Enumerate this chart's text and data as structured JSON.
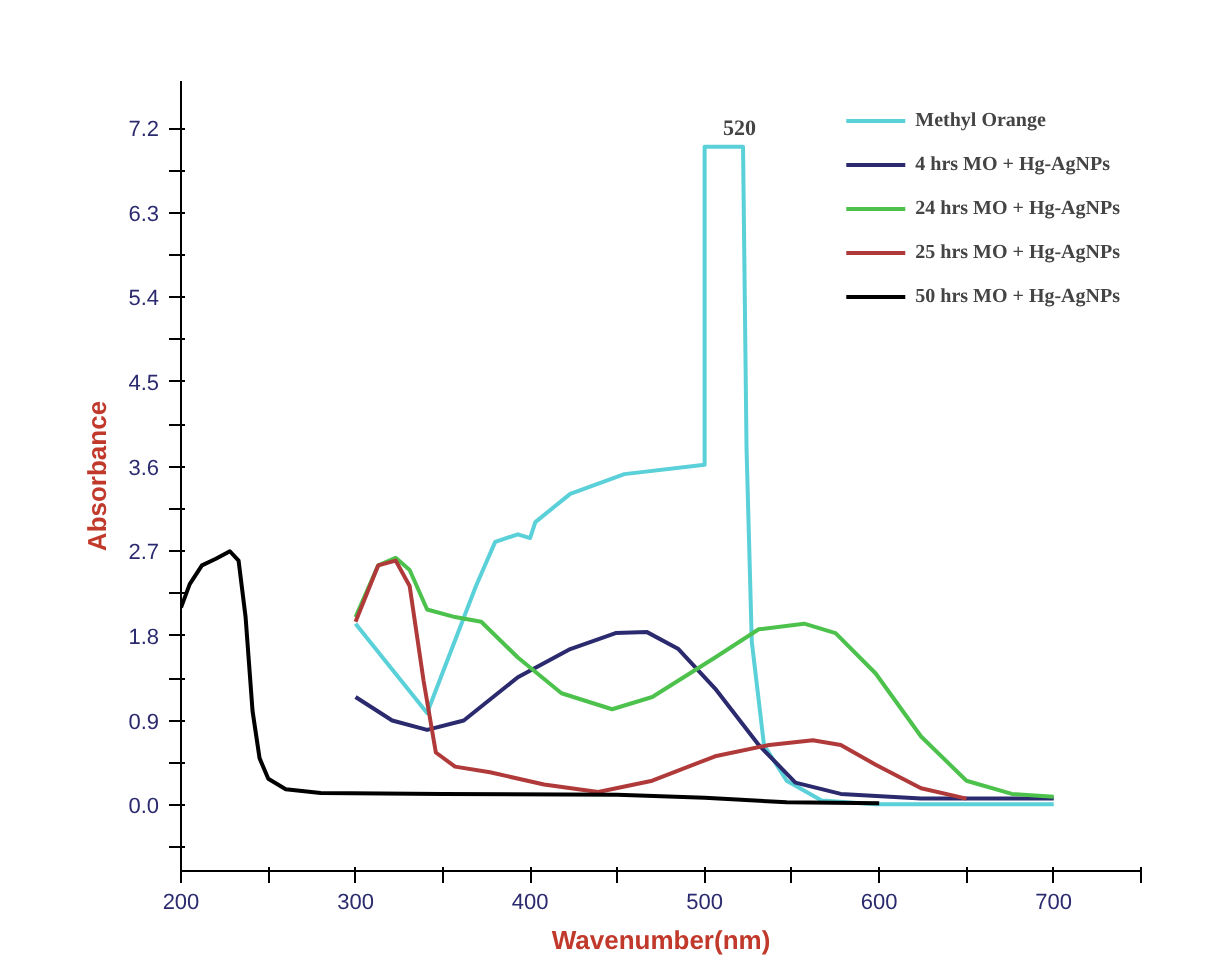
{
  "chart_data": {
    "type": "line",
    "xlabel": "Wavenumber(nm)",
    "ylabel": "Absorbance",
    "xlim": [
      200,
      750
    ],
    "ylim": [
      -0.7,
      7.7
    ],
    "xticks": [
      200,
      {
        "value": 250,
        "label": null
      },
      300,
      {
        "value": 350,
        "label": null
      },
      400,
      {
        "value": 450,
        "label": null
      },
      500,
      {
        "value": 550,
        "label": null
      },
      600,
      {
        "value": 650,
        "label": null
      },
      700,
      {
        "value": 750,
        "label": null
      }
    ],
    "yticks": [
      {
        "value": -0.45,
        "label": null
      },
      {
        "value": 0,
        "label": "0.0"
      },
      {
        "value": 0.45,
        "label": null
      },
      {
        "value": 0.9,
        "label": "0.9"
      },
      {
        "value": 1.35,
        "label": null
      },
      {
        "value": 1.8,
        "label": "1.8"
      },
      {
        "value": 2.25,
        "label": null
      },
      {
        "value": 2.7,
        "label": "2.7"
      },
      {
        "value": 3.15,
        "label": null
      },
      {
        "value": 3.6,
        "label": "3.6"
      },
      {
        "value": 4.05,
        "label": null
      },
      {
        "value": 4.5,
        "label": "4.5"
      },
      {
        "value": 4.95,
        "label": null
      },
      {
        "value": 5.4,
        "label": "5.4"
      },
      {
        "value": 5.85,
        "label": null
      },
      {
        "value": 6.3,
        "label": "6.3"
      },
      {
        "value": 6.75,
        "label": null
      },
      {
        "value": 7.2,
        "label": "7.2"
      }
    ],
    "grid": false,
    "legend": "top right",
    "marker": "none",
    "line_style": "solid",
    "annotations": [
      {
        "text": "520",
        "x": 520,
        "y": 7.0
      }
    ],
    "series": [
      {
        "name": "Methyl Orange",
        "color": "#5ad0d8",
        "x": [
          300,
          341,
          369,
          380,
          393,
          400,
          403,
          423,
          454,
          500,
          500,
          510,
          522,
          524,
          527,
          534,
          547,
          567,
          598,
          700
        ],
        "values": [
          1.93,
          0.98,
          2.33,
          2.8,
          2.88,
          2.84,
          3.01,
          3.31,
          3.52,
          3.62,
          7.0,
          7.0,
          7.0,
          3.8,
          1.74,
          0.64,
          0.26,
          0.05,
          0.01,
          0.01
        ]
      },
      {
        "name": "4 hrs MO + Hg-AgNPs",
        "color": "#2b2a6e",
        "x": [
          300,
          321,
          341,
          362,
          393,
          423,
          449,
          467,
          485,
          506,
          531,
          552,
          578,
          624,
          700
        ],
        "values": [
          1.15,
          0.9,
          0.8,
          0.9,
          1.36,
          1.66,
          1.83,
          1.84,
          1.66,
          1.24,
          0.64,
          0.24,
          0.12,
          0.07,
          0.07
        ]
      },
      {
        "name": "24 hrs MO + Hg-AgNPs",
        "color": "#4cc24c",
        "x": [
          300,
          313,
          323,
          331,
          341,
          357,
          372,
          393,
          418,
          447,
          470,
          506,
          531,
          557,
          575,
          598,
          624,
          650,
          676,
          700
        ],
        "values": [
          2.0,
          2.55,
          2.63,
          2.5,
          2.08,
          2.0,
          1.95,
          1.57,
          1.19,
          1.02,
          1.15,
          1.57,
          1.87,
          1.93,
          1.83,
          1.4,
          0.73,
          0.26,
          0.12,
          0.09
        ]
      },
      {
        "name": "25 hrs MO + Hg-AgNPs",
        "color": "#b03a3a",
        "x": [
          300,
          313,
          323,
          331,
          339,
          346,
          357,
          377,
          408,
          439,
          470,
          506,
          537,
          562,
          578,
          598,
          624,
          650
        ],
        "values": [
          1.95,
          2.55,
          2.6,
          2.33,
          1.32,
          0.56,
          0.41,
          0.35,
          0.22,
          0.14,
          0.26,
          0.52,
          0.64,
          0.69,
          0.64,
          0.43,
          0.18,
          0.07
        ]
      },
      {
        "name": "50 hrs MO + Hg-AgNPs",
        "color": "#000000",
        "x": [
          200,
          205,
          212,
          220,
          228,
          233,
          237,
          241,
          245,
          250,
          260,
          280,
          350,
          450,
          500,
          547,
          600
        ],
        "values": [
          2.1,
          2.35,
          2.55,
          2.62,
          2.7,
          2.6,
          2.0,
          1.0,
          0.5,
          0.28,
          0.17,
          0.13,
          0.12,
          0.11,
          0.08,
          0.03,
          0.02
        ]
      }
    ]
  }
}
